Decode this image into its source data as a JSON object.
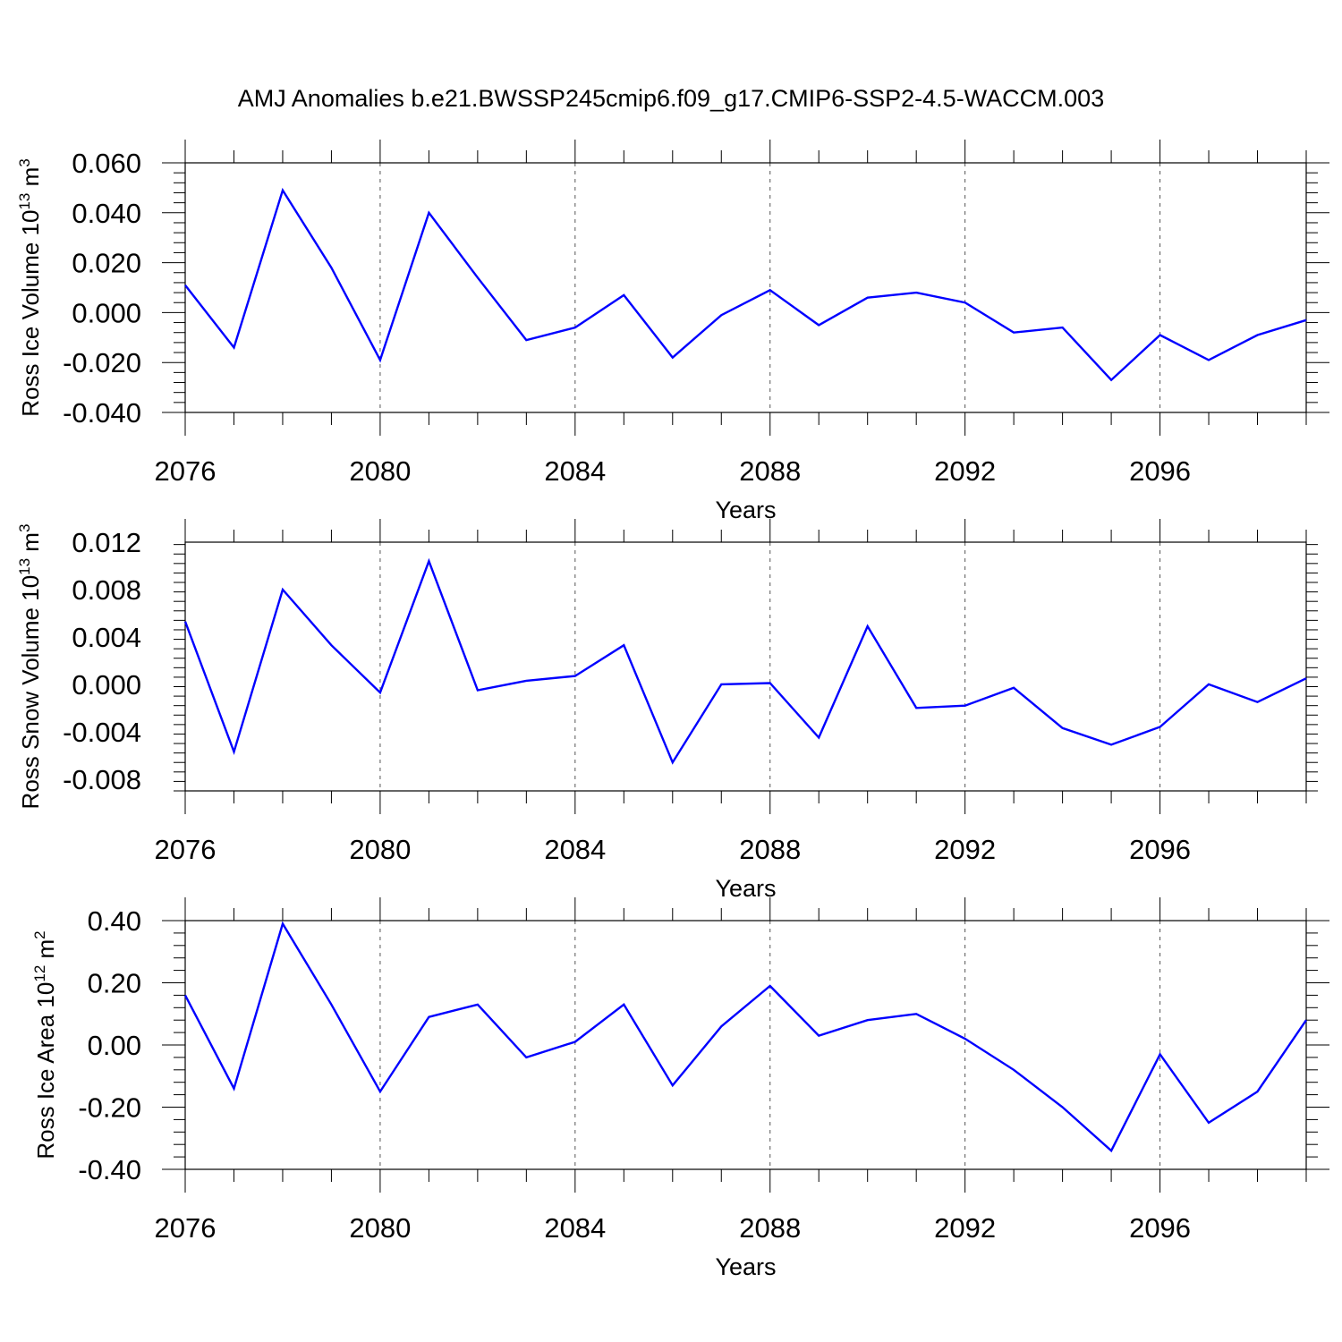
{
  "title": "AMJ Anomalies b.e21.BWSSP245cmip6.f09_g17.CMIP6-SSP2-4.5-WACCM.003",
  "chart_data": [
    {
      "type": "line",
      "ylabel": "Ross Ice Volume 10",
      "ylabel_exponent": "13",
      "ylabel_unit": "m",
      "ylabel_unit_exponent": "3",
      "xlabel": "Years",
      "xlim": [
        2076,
        2099
      ],
      "ylim": [
        -0.04,
        0.06
      ],
      "x_ticks": [
        "2076",
        "2080",
        "2084",
        "2088",
        "2092",
        "2096"
      ],
      "y_ticks": [
        "0.060",
        "0.040",
        "0.020",
        "0.000",
        "-0.020",
        "-0.040"
      ],
      "x": [
        2076,
        2077,
        2078,
        2079,
        2080,
        2081,
        2082,
        2083,
        2084,
        2085,
        2086,
        2087,
        2088,
        2089,
        2090,
        2091,
        2092,
        2093,
        2094,
        2095,
        2096,
        2097,
        2098,
        2099
      ],
      "series": [
        {
          "values": [
            0.011,
            -0.014,
            0.049,
            0.018,
            -0.019,
            0.04,
            0.014,
            -0.011,
            -0.006,
            0.007,
            -0.018,
            -0.001,
            0.009,
            -0.005,
            0.006,
            0.008,
            0.004,
            -0.008,
            -0.006,
            -0.027,
            -0.009,
            -0.019,
            -0.009,
            -0.003
          ],
          "color": "#0000ff"
        }
      ],
      "grid": "vertical dashed at labelled years",
      "legend": "none"
    },
    {
      "type": "line",
      "ylabel": "Ross Snow Volume 10",
      "ylabel_exponent": "13",
      "ylabel_unit": "m",
      "ylabel_unit_exponent": "3",
      "xlabel": "Years",
      "xlim": [
        2076,
        2099
      ],
      "ylim": [
        -0.009,
        0.012
      ],
      "x_ticks": [
        "2076",
        "2080",
        "2084",
        "2088",
        "2092",
        "2096"
      ],
      "y_ticks": [
        "0.012",
        "0.008",
        "0.004",
        "0.000",
        "-0.004",
        "-0.008"
      ],
      "x": [
        2076,
        2077,
        2078,
        2079,
        2080,
        2081,
        2082,
        2083,
        2084,
        2085,
        2086,
        2087,
        2088,
        2089,
        2090,
        2091,
        2092,
        2093,
        2094,
        2095,
        2096,
        2097,
        2098,
        2099
      ],
      "series": [
        {
          "values": [
            0.0053,
            -0.0057,
            0.008,
            0.0033,
            -0.0007,
            0.0104,
            -0.0005,
            0.0003,
            0.0007,
            0.0033,
            -0.0066,
            0.0,
            0.0001,
            -0.0045,
            0.0049,
            -0.002,
            -0.0018,
            -0.0003,
            -0.0037,
            -0.0051,
            -0.0036,
            0.0,
            -0.0015,
            0.0005
          ],
          "color": "#0000ff"
        }
      ],
      "grid": "vertical dashed at labelled years",
      "legend": "none"
    },
    {
      "type": "line",
      "ylabel": "Ross Ice Area 10",
      "ylabel_exponent": "12",
      "ylabel_unit": "m",
      "ylabel_unit_exponent": "2",
      "xlabel": "Years",
      "xlim": [
        2076,
        2099
      ],
      "ylim": [
        -0.4,
        0.4
      ],
      "x_ticks": [
        "2076",
        "2080",
        "2084",
        "2088",
        "2092",
        "2096"
      ],
      "y_ticks": [
        "0.40",
        "0.20",
        "0.00",
        "-0.20",
        "-0.40"
      ],
      "x": [
        2076,
        2077,
        2078,
        2079,
        2080,
        2081,
        2082,
        2083,
        2084,
        2085,
        2086,
        2087,
        2088,
        2089,
        2090,
        2091,
        2092,
        2093,
        2094,
        2095,
        2096,
        2097,
        2098,
        2099
      ],
      "series": [
        {
          "values": [
            0.16,
            -0.14,
            0.39,
            0.13,
            -0.15,
            0.09,
            0.13,
            -0.04,
            0.01,
            0.13,
            -0.13,
            0.06,
            0.19,
            0.03,
            0.08,
            0.1,
            0.02,
            -0.08,
            -0.2,
            -0.34,
            -0.03,
            -0.25,
            -0.15,
            0.08
          ],
          "color": "#0000ff"
        }
      ],
      "grid": "vertical dashed at labelled years",
      "legend": "none"
    }
  ]
}
